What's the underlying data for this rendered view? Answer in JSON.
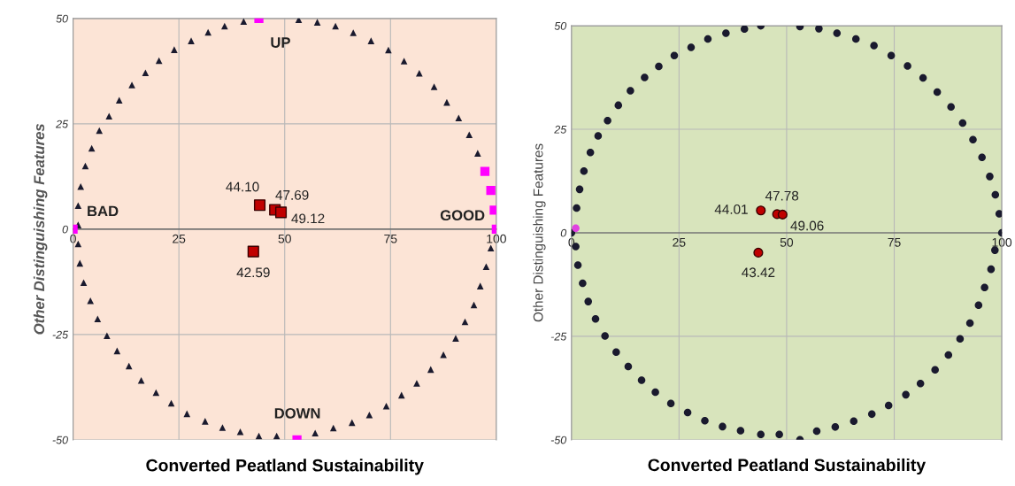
{
  "chart_data": [
    {
      "type": "scatter",
      "xlabel": "Converted Peatland Sustainability",
      "ylabel": "Other Distinguishing Features",
      "xlim": [
        0,
        100
      ],
      "ylim": [
        -50,
        50
      ],
      "xticks": [
        0,
        25,
        50,
        75,
        100
      ],
      "yticks": [
        -50,
        -25,
        0,
        25,
        50
      ],
      "grid": true,
      "annotations": [
        "UP",
        "DOWN",
        "BAD",
        "GOOD",
        {
          "text": "44.10",
          "x": 44.1,
          "y": 5.7
        },
        {
          "text": "47.69",
          "x": 47.69,
          "y": 4.6
        },
        {
          "text": "49.12",
          "x": 49.12,
          "y": 4.0
        },
        {
          "text": "42.59",
          "x": 42.59,
          "y": -5.3
        }
      ],
      "series": [
        {
          "color": "#1a1a2e",
          "marker": "triangle",
          "x": [
            40.3,
            35.8,
            31.9,
            27.9,
            23.9,
            20.3,
            17.1,
            13.9,
            10.9,
            8.5,
            6.2,
            4.4,
            2.9,
            1.8,
            1.2,
            1.2,
            1.2,
            1.6,
            2.5,
            4.1,
            5.8,
            8.0,
            10.4,
            13.2,
            16.1,
            19.6,
            23.2,
            26.9,
            31.2,
            35.3,
            39.5,
            43.9,
            48.1,
            57.2,
            61.5,
            65.9,
            70.0,
            74.0,
            77.6,
            81.2,
            84.5,
            87.5,
            90.4,
            92.6,
            94.7,
            96.2,
            97.6,
            98.7,
            95.6,
            93.6,
            91.1,
            88.3,
            85.3,
            81.8,
            78.2,
            74.5,
            70.4,
            66.2,
            62.0,
            57.7,
            53.3
          ],
          "values": [
            49.3,
            48.2,
            46.7,
            44.7,
            42.6,
            40.0,
            37.1,
            34.2,
            30.6,
            26.8,
            23.4,
            19.2,
            15.0,
            10.1,
            5.6,
            1.0,
            -3.5,
            -8.1,
            -12.7,
            -17.0,
            -21.3,
            -25.3,
            -28.9,
            -32.5,
            -35.9,
            -38.8,
            -41.3,
            -43.8,
            -45.6,
            -47.1,
            -48.1,
            -49.1,
            -49.1,
            -48.4,
            -47.2,
            -45.9,
            -44.1,
            -42.0,
            -39.4,
            -36.6,
            -33.3,
            -29.8,
            -25.9,
            -22.0,
            -18.0,
            -13.5,
            -8.9,
            -4.5,
            18.0,
            22.4,
            26.4,
            30.1,
            33.8,
            37.0,
            39.9,
            42.5,
            44.7,
            46.6,
            48.2,
            49.1,
            49.7
          ]
        },
        {
          "color": "#ff00ff",
          "marker": "square",
          "x": [
            43.9,
            52.9,
            0,
            100,
            97.3,
            98.7,
            99.5
          ],
          "values": [
            50,
            -50,
            0,
            0,
            13.7,
            9.2,
            4.5
          ]
        },
        {
          "color": "#c00000",
          "marker": "square",
          "x": [
            44.1,
            47.69,
            49.12,
            42.59
          ],
          "values": [
            5.7,
            4.6,
            4.0,
            -5.3
          ]
        }
      ]
    },
    {
      "type": "scatter",
      "xlabel": "Converted Peatland Sustainability",
      "ylabel": "Other Distinguishing Features",
      "xlim": [
        0,
        100
      ],
      "ylim": [
        -50,
        50
      ],
      "xticks": [
        0,
        25,
        50,
        75,
        100
      ],
      "yticks": [
        -50,
        -25,
        0,
        25,
        50
      ],
      "grid": true,
      "annotations": [
        {
          "text": "44.01",
          "x": 44.01,
          "y": 5.4
        },
        {
          "text": "47.78",
          "x": 47.78,
          "y": 4.5
        },
        {
          "text": "49.06",
          "x": 49.06,
          "y": 4.4
        },
        {
          "text": "43.42",
          "x": 43.42,
          "y": -4.8
        }
      ],
      "series": [
        {
          "color": "#1a1a2e",
          "marker": "circle",
          "x": [
            44.0,
            40.2,
            35.9,
            31.7,
            27.8,
            23.9,
            20.3,
            17.0,
            13.7,
            10.9,
            8.4,
            6.2,
            4.4,
            2.9,
            1.9,
            1.2,
            0,
            1.0,
            1.5,
            2.6,
            3.9,
            5.6,
            7.8,
            10.4,
            13.2,
            16.3,
            19.5,
            23.1,
            27.0,
            31.0,
            35.1,
            39.3,
            44.0,
            48.3,
            53.1,
            57.0,
            61.3,
            65.6,
            69.8,
            73.7,
            77.7,
            81.1,
            84.5,
            87.6,
            90.3,
            92.6,
            94.6,
            96.0,
            97.5,
            98.4,
            100,
            99.4,
            98.5,
            97.2,
            95.4,
            93.3,
            90.9,
            88.2,
            85.0,
            81.7,
            78.1,
            74.3,
            70.3,
            66.1,
            61.7,
            57.5,
            53.1
          ],
          "values": [
            50.0,
            49.2,
            48.2,
            46.8,
            44.8,
            42.8,
            40.2,
            37.5,
            34.3,
            30.8,
            27.1,
            23.4,
            19.4,
            14.9,
            10.5,
            6.0,
            0,
            -3.3,
            -7.8,
            -12.2,
            -16.6,
            -20.8,
            -24.9,
            -28.8,
            -32.3,
            -35.6,
            -38.5,
            -41.2,
            -43.4,
            -45.4,
            -46.8,
            -47.8,
            -48.7,
            -48.7,
            -50.0,
            -47.9,
            -46.9,
            -45.5,
            -43.8,
            -41.7,
            -39.1,
            -36.4,
            -33.1,
            -29.5,
            -25.6,
            -21.8,
            -17.5,
            -13.2,
            -8.8,
            -4.2,
            0,
            4.6,
            9.2,
            13.6,
            18.2,
            22.5,
            26.5,
            30.4,
            34.0,
            37.4,
            40.3,
            42.8,
            45.2,
            46.8,
            48.2,
            49.3,
            49.8
          ]
        },
        {
          "color": "#e040e0",
          "marker": "circle",
          "x": [
            1.0
          ],
          "values": [
            1.1
          ]
        },
        {
          "color": "#c00000",
          "marker": "circle",
          "x": [
            44.01,
            47.78,
            49.06,
            43.42
          ],
          "values": [
            5.4,
            4.5,
            4.4,
            -4.8
          ]
        }
      ]
    }
  ]
}
